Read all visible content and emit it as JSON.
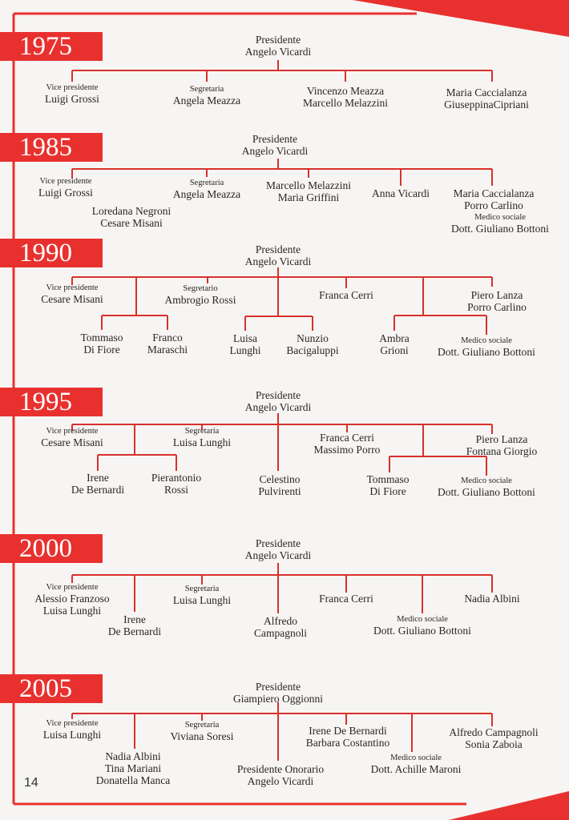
{
  "page_number": "14",
  "accent_color": "#e8312f",
  "sections": [
    {
      "year": "1975",
      "nodes": [
        {
          "label": "",
          "names": [
            "Presidente",
            "Angelo Vicardi"
          ]
        },
        {
          "label": "Vice presidente",
          "names": [
            "Luigi Grossi"
          ]
        },
        {
          "label": "Segretaria",
          "names": [
            "Angela Meazza"
          ]
        },
        {
          "label": "",
          "names": [
            "Vincenzo Meazza",
            "Marcello Melazzini"
          ]
        },
        {
          "label": "",
          "names": [
            "Maria Caccialanza",
            "GiuseppinaCipriani"
          ]
        }
      ]
    },
    {
      "year": "1985",
      "nodes": [
        {
          "label": "",
          "names": [
            "Presidente",
            "Angelo Vicardi"
          ]
        },
        {
          "label": "Vice presidente",
          "names": [
            "Luigi Grossi"
          ]
        },
        {
          "label": "",
          "names": [
            "Loredana Negroni",
            "Cesare Misani"
          ]
        },
        {
          "label": "Segretaria",
          "names": [
            "Angela Meazza"
          ]
        },
        {
          "label": "",
          "names": [
            "Marcello Melazzini",
            "Maria Griffini"
          ]
        },
        {
          "label": "",
          "names": [
            "Anna Vicardi"
          ]
        },
        {
          "label": "",
          "names": [
            "Maria Caccialanza",
            "Porro Carlino"
          ]
        },
        {
          "label": "Medico sociale",
          "names": [
            "Dott. Giuliano Bottoni"
          ]
        }
      ]
    },
    {
      "year": "1990",
      "nodes": [
        {
          "label": "",
          "names": [
            "Presidente",
            "Angelo Vicardi"
          ]
        },
        {
          "label": "Vice presidente",
          "names": [
            "Cesare Misani"
          ]
        },
        {
          "label": "Segretario",
          "names": [
            "Ambrogio Rossi"
          ]
        },
        {
          "label": "",
          "names": [
            "Franca Cerri"
          ]
        },
        {
          "label": "",
          "names": [
            "Piero Lanza",
            "Porro Carlino"
          ]
        },
        {
          "label": "",
          "names": [
            "Tommaso",
            "Di Fiore"
          ]
        },
        {
          "label": "",
          "names": [
            "Franco",
            "Maraschi"
          ]
        },
        {
          "label": "",
          "names": [
            "Luisa",
            "Lunghi"
          ]
        },
        {
          "label": "",
          "names": [
            "Nunzio",
            "Bacigaluppi"
          ]
        },
        {
          "label": "",
          "names": [
            "Ambra",
            "Grioni"
          ]
        },
        {
          "label": "Medico sociale",
          "names": [
            "Dott. Giuliano Bottoni"
          ]
        }
      ]
    },
    {
      "year": "1995",
      "nodes": [
        {
          "label": "",
          "names": [
            "Presidente",
            "Angelo Vicardi"
          ]
        },
        {
          "label": "Vice presidente",
          "names": [
            "Cesare Misani"
          ]
        },
        {
          "label": "Segretaria",
          "names": [
            "Luisa Lunghi"
          ]
        },
        {
          "label": "",
          "names": [
            "Franca Cerri",
            "Massimo Porro"
          ]
        },
        {
          "label": "",
          "names": [
            "Piero Lanza",
            "Fontana Giorgio"
          ]
        },
        {
          "label": "",
          "names": [
            "Irene",
            "De Bernardi"
          ]
        },
        {
          "label": "",
          "names": [
            "Pierantonio",
            "Rossi"
          ]
        },
        {
          "label": "",
          "names": [
            "Celestino",
            "Pulvirenti"
          ]
        },
        {
          "label": "",
          "names": [
            "Tommaso",
            "Di Fiore"
          ]
        },
        {
          "label": "Medico sociale",
          "names": [
            "Dott. Giuliano Bottoni"
          ]
        }
      ]
    },
    {
      "year": "2000",
      "nodes": [
        {
          "label": "",
          "names": [
            "Presidente",
            "Angelo Vicardi"
          ]
        },
        {
          "label": "Vice presidente",
          "names": [
            "Alessio Franzoso",
            "Luisa Lunghi"
          ]
        },
        {
          "label": "",
          "names": [
            "Irene",
            "De Bernardi"
          ]
        },
        {
          "label": "Segretaria",
          "names": [
            "Luisa Lunghi"
          ]
        },
        {
          "label": "",
          "names": [
            "Alfredo",
            "Campagnoli"
          ]
        },
        {
          "label": "",
          "names": [
            "Franca Cerri"
          ]
        },
        {
          "label": "Medico sociale",
          "names": [
            "Dott. Giuliano Bottoni"
          ]
        },
        {
          "label": "",
          "names": [
            "Nadia Albini"
          ]
        }
      ]
    },
    {
      "year": "2005",
      "nodes": [
        {
          "label": "",
          "names": [
            "Presidente",
            "Giampiero Oggionni"
          ]
        },
        {
          "label": "Vice presidente",
          "names": [
            "Luisa Lunghi"
          ]
        },
        {
          "label": "",
          "names": [
            "Nadia Albini",
            "Tina Mariani",
            "Donatella Manca"
          ]
        },
        {
          "label": "Segretaria",
          "names": [
            "Viviana Soresi"
          ]
        },
        {
          "label": "",
          "names": [
            "Presidente Onorario",
            "Angelo Vicardi"
          ]
        },
        {
          "label": "",
          "names": [
            "Irene De Bernardi",
            "Barbara Costantino"
          ]
        },
        {
          "label": "Medico sociale",
          "names": [
            "Dott. Achille Maroni"
          ]
        },
        {
          "label": "",
          "names": [
            "Alfredo Campagnoli",
            "Sonia Zaboia"
          ]
        }
      ]
    }
  ]
}
